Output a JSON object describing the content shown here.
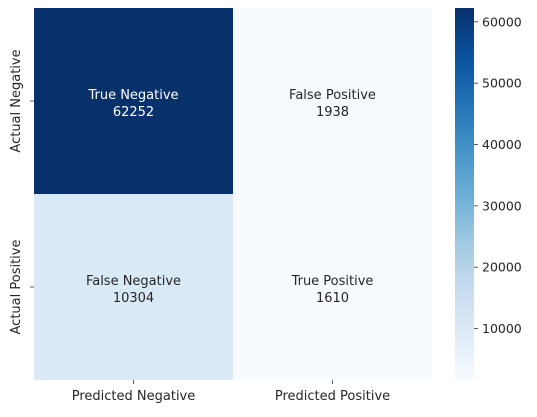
{
  "chart_data": {
    "type": "heatmap",
    "rows": [
      "Actual Negative",
      "Actual Positive"
    ],
    "columns": [
      "Predicted Negative",
      "Predicted Positive"
    ],
    "cells": [
      [
        {
          "label": "True Negative",
          "value": 62252
        },
        {
          "label": "False Positive",
          "value": 1938
        }
      ],
      [
        {
          "label": "False Negative",
          "value": 10304
        },
        {
          "label": "True Positive",
          "value": 1610
        }
      ]
    ],
    "colormap": "Blues",
    "colorbar": {
      "range": [
        1610,
        62252
      ],
      "ticks": [
        10000,
        20000,
        30000,
        40000,
        50000,
        60000
      ]
    }
  }
}
